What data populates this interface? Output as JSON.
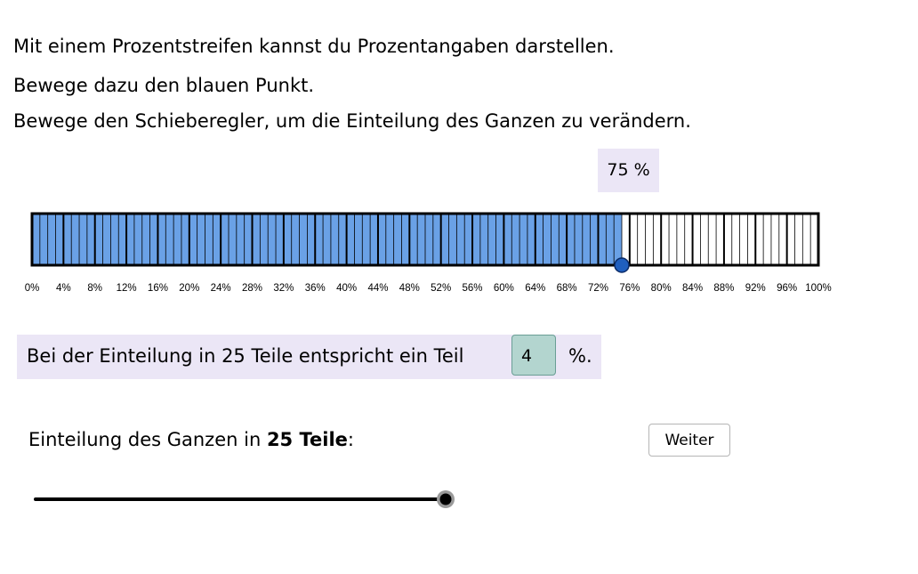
{
  "instructions": {
    "line1": "Mit einem Prozentstreifen kannst du Prozentangaben darstellen.",
    "line2": "Bewege dazu den blauen Punkt.",
    "line3": "Bewege den Schieberegler, um die Einteilung des Ganzen zu verändern."
  },
  "percent_display": "75 %",
  "strip": {
    "parts": 25,
    "sub_divisions": 4,
    "filled_percent": 75,
    "fill_color": "#6aa1e6",
    "point_color": "#1f5fbf",
    "tick_labels": [
      "0%",
      "4%",
      "8%",
      "12%",
      "16%",
      "20%",
      "24%",
      "28%",
      "32%",
      "36%",
      "40%",
      "44%",
      "48%",
      "52%",
      "56%",
      "60%",
      "64%",
      "68%",
      "72%",
      "76%",
      "80%",
      "84%",
      "88%",
      "92%",
      "96%",
      "100%"
    ]
  },
  "info": {
    "text": "Bei der Einteilung in 25 Teile entspricht ein Teil",
    "answer_value": "4",
    "unit": "%."
  },
  "slider": {
    "label_prefix": "Einteilung des Ganzen in ",
    "label_bold": "25 Teile",
    "label_suffix": ":",
    "value_fraction": 1.0
  },
  "weiter_button": "Weiter"
}
